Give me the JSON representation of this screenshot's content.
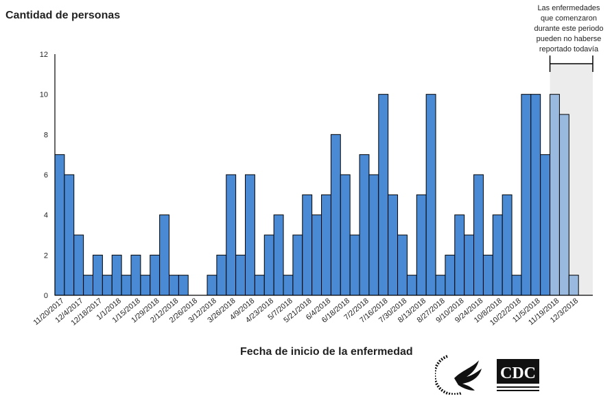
{
  "chart_data": {
    "type": "bar",
    "ylabel": "Cantidad de personas",
    "xlabel": "Fecha de inicio de la enfermedad",
    "ylim": [
      0,
      12
    ],
    "yticks": [
      0,
      2,
      4,
      6,
      8,
      10,
      12
    ],
    "grid": false,
    "bin_days": 7,
    "tick_every_bins": 2,
    "tick_labels": [
      "11/20/2017",
      "12/4/2017",
      "12/18/2017",
      "1/1/2018",
      "1/15/2018",
      "1/29/2018",
      "2/12/2018",
      "2/26/2018",
      "3/12/2018",
      "3/26/2018",
      "4/9/2018",
      "4/23/2018",
      "5/7/2018",
      "5/21/2018",
      "6/4/2018",
      "6/18/2018",
      "7/2/2018",
      "7/16/2018",
      "7/30/2018",
      "8/13/2018",
      "8/27/2018",
      "9/10/2018",
      "9/24/2018",
      "10/8/2018",
      "10/22/2018",
      "11/5/2018",
      "11/19/2018",
      "12/3/2018"
    ],
    "values": [
      7,
      6,
      3,
      1,
      2,
      1,
      2,
      1,
      2,
      1,
      2,
      4,
      1,
      1,
      0,
      0,
      1,
      2,
      6,
      2,
      6,
      1,
      3,
      4,
      1,
      3,
      5,
      4,
      5,
      8,
      6,
      3,
      7,
      6,
      10,
      5,
      3,
      1,
      5,
      10,
      1,
      2,
      4,
      3,
      6,
      2,
      4,
      5,
      1,
      10,
      10,
      7,
      10,
      9,
      1
    ],
    "reporting_delay_start_index": 52,
    "reporting_delay_note": "Las enfermedades que comenzaron durante este periodo pueden no haberse reportado todavía",
    "colors": {
      "bar": "#4a8ad4",
      "bar_delayed": "#9ab9de",
      "shade": "#ececec",
      "edge": "#000000"
    }
  },
  "logos": [
    {
      "name": "hhs-seal",
      "text": "DEPARTMENT OF HEALTH & HUMAN SERVICES USA"
    },
    {
      "name": "cdc-logo",
      "text": "CDC",
      "subtext": "CENTERS FOR DISEASE CONTROL AND PREVENTION"
    }
  ]
}
